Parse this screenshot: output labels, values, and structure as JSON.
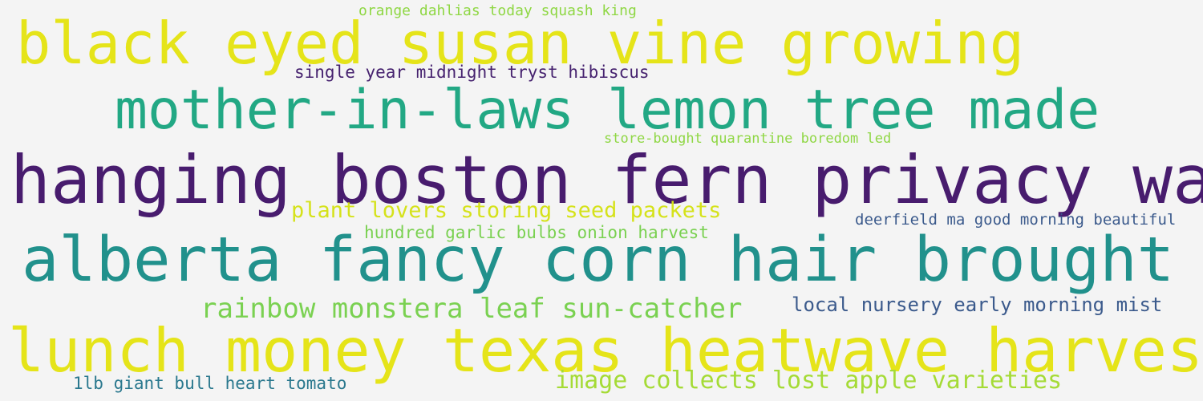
{
  "word_cloud": {
    "phrases": [
      {
        "text": "orange dahlias today squash king",
        "color": "#8fd744"
      },
      {
        "text": "black eyed susan vine growing",
        "color": "#e5e419"
      },
      {
        "text": "single year midnight tryst hibiscus",
        "color": "#46226f"
      },
      {
        "text": "mother-in-laws lemon tree made",
        "color": "#22a884"
      },
      {
        "text": "store-bought quarantine boredom led",
        "color": "#8fd744"
      },
      {
        "text": "hanging boston fern privacy wall",
        "color": "#481c6e"
      },
      {
        "text": "plant lovers storing seed packets",
        "color": "#d5e21a"
      },
      {
        "text": "deerfield ma good morning beautiful",
        "color": "#3b5a8c"
      },
      {
        "text": "hundred garlic bulbs onion harvest",
        "color": "#7ad151"
      },
      {
        "text": "alberta fancy corn hair brought",
        "color": "#21918c"
      },
      {
        "text": "rainbow monstera leaf sun-catcher",
        "color": "#7ad151"
      },
      {
        "text": "local nursery early morning mist",
        "color": "#3b5a8c"
      },
      {
        "text": "lunch money texas heatwave harvest",
        "color": "#e5e419"
      },
      {
        "text": "1lb giant bull heart tomato",
        "color": "#2a788e"
      },
      {
        "text": "image collects lost apple varieties",
        "color": "#a5db36"
      }
    ]
  }
}
